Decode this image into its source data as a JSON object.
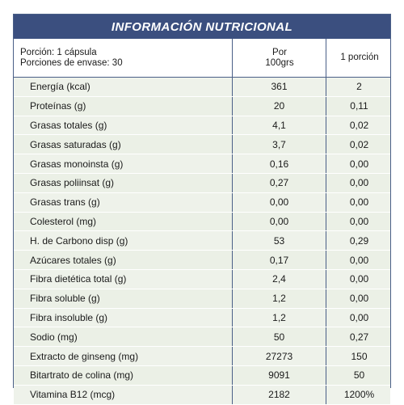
{
  "title": "INFORMACIÓN NUTRICIONAL",
  "header": {
    "serving_line1": "Porción: 1 cápsula",
    "serving_line2": "Porciones de envase: 30",
    "per100_line1": "Por",
    "per100_line2": "100grs",
    "portion": "1 porción"
  },
  "rows": [
    {
      "label": "Energía (kcal)",
      "per100": "361",
      "portion": "2"
    },
    {
      "label": "Proteínas (g)",
      "per100": "20",
      "portion": "0,11"
    },
    {
      "label": "Grasas totales (g)",
      "per100": "4,1",
      "portion": "0,02"
    },
    {
      "label": "Grasas saturadas (g)",
      "per100": "3,7",
      "portion": "0,02"
    },
    {
      "label": "Grasas monoinsta (g)",
      "per100": "0,16",
      "portion": "0,00"
    },
    {
      "label": "Grasas poliinsat (g)",
      "per100": "0,27",
      "portion": "0,00"
    },
    {
      "label": "Grasas trans (g)",
      "per100": "0,00",
      "portion": "0,00"
    },
    {
      "label": "Colesterol (mg)",
      "per100": "0,00",
      "portion": "0,00"
    },
    {
      "label": "H. de Carbono disp (g)",
      "per100": "53",
      "portion": "0,29"
    },
    {
      "label": "Azúcares totales (g)",
      "per100": "0,17",
      "portion": "0,00"
    },
    {
      "label": "Fibra dietética total (g)",
      "per100": "2,4",
      "portion": "0,00"
    },
    {
      "label": "Fibra soluble (g)",
      "per100": "1,2",
      "portion": "0,00"
    },
    {
      "label": "Fibra insoluble (g)",
      "per100": "1,2",
      "portion": "0,00"
    },
    {
      "label": "Sodio (mg)",
      "per100": "50",
      "portion": "0,27"
    },
    {
      "label": "Extracto de ginseng (mg)",
      "per100": "27273",
      "portion": "150"
    },
    {
      "label": "Bitartrato de colina (mg)",
      "per100": "9091",
      "portion": "50"
    },
    {
      "label": "Vitamina B12 (mcg)",
      "per100": "2182",
      "portion": "1200%"
    }
  ]
}
